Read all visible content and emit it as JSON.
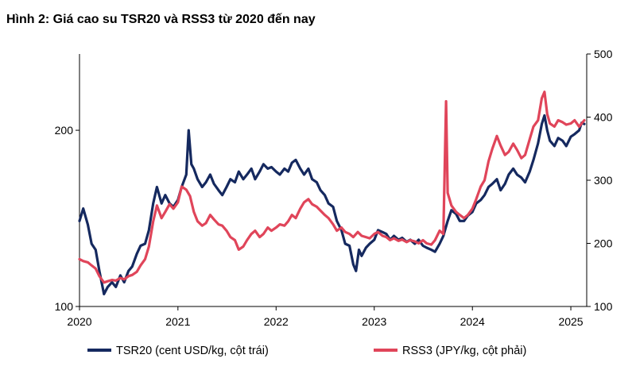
{
  "title": "Hình 2: Giá cao su TSR20 và RSS3 từ 2020 đến nay",
  "chart_data": {
    "type": "line",
    "title": "Hình 2: Giá cao su TSR20 và RSS3 từ 2020 đến nay",
    "x_range": [
      "2020-01-01",
      "2025-03-01"
    ],
    "x_ticks": [
      "2020",
      "2021",
      "2022",
      "2023",
      "2024",
      "2025"
    ],
    "left_axis": {
      "scale": "log",
      "range": [
        100,
        270
      ],
      "ticks": [
        100,
        200
      ]
    },
    "right_axis": {
      "scale": "linear",
      "range": [
        100,
        500
      ],
      "ticks": [
        100,
        200,
        300,
        400,
        500
      ]
    },
    "grid": false,
    "legend_position": "bottom",
    "series": [
      {
        "name": "TSR20 (cent USD/kg, cột trái)",
        "axis": "left",
        "color": "#15295f",
        "points": [
          [
            "2020-01-01",
            140
          ],
          [
            "2020-01-15",
            147
          ],
          [
            "2020-02-01",
            138
          ],
          [
            "2020-02-15",
            128
          ],
          [
            "2020-03-01",
            125
          ],
          [
            "2020-03-15",
            115
          ],
          [
            "2020-04-01",
            105
          ],
          [
            "2020-04-15",
            108
          ],
          [
            "2020-05-01",
            110
          ],
          [
            "2020-05-15",
            108
          ],
          [
            "2020-06-01",
            113
          ],
          [
            "2020-06-15",
            110
          ],
          [
            "2020-07-01",
            115
          ],
          [
            "2020-07-15",
            117
          ],
          [
            "2020-08-01",
            123
          ],
          [
            "2020-08-15",
            127
          ],
          [
            "2020-09-01",
            128
          ],
          [
            "2020-09-15",
            135
          ],
          [
            "2020-10-01",
            150
          ],
          [
            "2020-10-15",
            160
          ],
          [
            "2020-11-01",
            150
          ],
          [
            "2020-11-15",
            155
          ],
          [
            "2020-12-01",
            150
          ],
          [
            "2020-12-15",
            148
          ],
          [
            "2021-01-01",
            152
          ],
          [
            "2021-01-15",
            160
          ],
          [
            "2021-02-01",
            168
          ],
          [
            "2021-02-10",
            200
          ],
          [
            "2021-02-20",
            175
          ],
          [
            "2021-03-01",
            172
          ],
          [
            "2021-03-15",
            165
          ],
          [
            "2021-04-01",
            160
          ],
          [
            "2021-04-15",
            163
          ],
          [
            "2021-05-01",
            168
          ],
          [
            "2021-05-15",
            162
          ],
          [
            "2021-06-01",
            158
          ],
          [
            "2021-06-15",
            155
          ],
          [
            "2021-07-01",
            160
          ],
          [
            "2021-07-15",
            165
          ],
          [
            "2021-08-01",
            163
          ],
          [
            "2021-08-15",
            170
          ],
          [
            "2021-09-01",
            165
          ],
          [
            "2021-09-15",
            168
          ],
          [
            "2021-10-01",
            172
          ],
          [
            "2021-10-15",
            165
          ],
          [
            "2021-11-01",
            170
          ],
          [
            "2021-11-15",
            175
          ],
          [
            "2021-12-01",
            172
          ],
          [
            "2021-12-15",
            173
          ],
          [
            "2022-01-01",
            170
          ],
          [
            "2022-01-15",
            168
          ],
          [
            "2022-02-01",
            172
          ],
          [
            "2022-02-15",
            170
          ],
          [
            "2022-03-01",
            176
          ],
          [
            "2022-03-15",
            178
          ],
          [
            "2022-04-01",
            172
          ],
          [
            "2022-04-15",
            168
          ],
          [
            "2022-05-01",
            172
          ],
          [
            "2022-05-15",
            165
          ],
          [
            "2022-06-01",
            163
          ],
          [
            "2022-06-15",
            158
          ],
          [
            "2022-07-01",
            155
          ],
          [
            "2022-07-15",
            150
          ],
          [
            "2022-08-01",
            148
          ],
          [
            "2022-08-15",
            140
          ],
          [
            "2022-09-01",
            135
          ],
          [
            "2022-09-15",
            128
          ],
          [
            "2022-10-01",
            127
          ],
          [
            "2022-10-15",
            118
          ],
          [
            "2022-10-25",
            115
          ],
          [
            "2022-11-05",
            125
          ],
          [
            "2022-11-15",
            122
          ],
          [
            "2022-12-01",
            126
          ],
          [
            "2022-12-15",
            128
          ],
          [
            "2023-01-01",
            130
          ],
          [
            "2023-01-15",
            135
          ],
          [
            "2023-02-01",
            134
          ],
          [
            "2023-02-15",
            133
          ],
          [
            "2023-03-01",
            130
          ],
          [
            "2023-03-15",
            132
          ],
          [
            "2023-04-01",
            130
          ],
          [
            "2023-04-15",
            131
          ],
          [
            "2023-05-01",
            129
          ],
          [
            "2023-05-15",
            130
          ],
          [
            "2023-06-01",
            128
          ],
          [
            "2023-06-15",
            130
          ],
          [
            "2023-07-01",
            127
          ],
          [
            "2023-07-15",
            126
          ],
          [
            "2023-08-01",
            125
          ],
          [
            "2023-08-15",
            124
          ],
          [
            "2023-09-01",
            128
          ],
          [
            "2023-09-15",
            132
          ],
          [
            "2023-10-01",
            140
          ],
          [
            "2023-10-15",
            146
          ],
          [
            "2023-11-01",
            144
          ],
          [
            "2023-11-15",
            140
          ],
          [
            "2023-12-01",
            140
          ],
          [
            "2023-12-15",
            143
          ],
          [
            "2024-01-01",
            145
          ],
          [
            "2024-01-15",
            150
          ],
          [
            "2024-02-01",
            152
          ],
          [
            "2024-02-15",
            155
          ],
          [
            "2024-03-01",
            160
          ],
          [
            "2024-03-15",
            162
          ],
          [
            "2024-04-01",
            165
          ],
          [
            "2024-04-15",
            158
          ],
          [
            "2024-05-01",
            162
          ],
          [
            "2024-05-15",
            168
          ],
          [
            "2024-06-01",
            172
          ],
          [
            "2024-06-15",
            168
          ],
          [
            "2024-07-01",
            166
          ],
          [
            "2024-07-15",
            163
          ],
          [
            "2024-08-01",
            170
          ],
          [
            "2024-08-15",
            178
          ],
          [
            "2024-09-01",
            190
          ],
          [
            "2024-09-15",
            205
          ],
          [
            "2024-09-25",
            212
          ],
          [
            "2024-10-05",
            200
          ],
          [
            "2024-10-15",
            192
          ],
          [
            "2024-11-01",
            188
          ],
          [
            "2024-11-15",
            194
          ],
          [
            "2024-12-01",
            192
          ],
          [
            "2024-12-15",
            188
          ],
          [
            "2025-01-01",
            195
          ],
          [
            "2025-01-15",
            197
          ],
          [
            "2025-02-01",
            200
          ],
          [
            "2025-02-10",
            206
          ],
          [
            "2025-02-20",
            205
          ]
        ]
      },
      {
        "name": "RSS3 (JPY/kg, cột phải)",
        "axis": "right",
        "color": "#e0455a",
        "points": [
          [
            "2020-01-01",
            175
          ],
          [
            "2020-01-15",
            172
          ],
          [
            "2020-02-01",
            170
          ],
          [
            "2020-02-15",
            165
          ],
          [
            "2020-03-01",
            160
          ],
          [
            "2020-03-15",
            148
          ],
          [
            "2020-04-01",
            138
          ],
          [
            "2020-04-15",
            140
          ],
          [
            "2020-05-01",
            142
          ],
          [
            "2020-05-15",
            141
          ],
          [
            "2020-06-01",
            145
          ],
          [
            "2020-06-15",
            143
          ],
          [
            "2020-07-01",
            148
          ],
          [
            "2020-07-15",
            150
          ],
          [
            "2020-08-01",
            155
          ],
          [
            "2020-08-15",
            165
          ],
          [
            "2020-09-01",
            175
          ],
          [
            "2020-09-15",
            195
          ],
          [
            "2020-10-01",
            235
          ],
          [
            "2020-10-15",
            260
          ],
          [
            "2020-11-01",
            240
          ],
          [
            "2020-11-15",
            250
          ],
          [
            "2020-12-01",
            262
          ],
          [
            "2020-12-15",
            255
          ],
          [
            "2021-01-01",
            265
          ],
          [
            "2021-01-15",
            290
          ],
          [
            "2021-02-01",
            285
          ],
          [
            "2021-02-15",
            275
          ],
          [
            "2021-03-01",
            250
          ],
          [
            "2021-03-15",
            235
          ],
          [
            "2021-04-01",
            228
          ],
          [
            "2021-04-15",
            232
          ],
          [
            "2021-05-01",
            245
          ],
          [
            "2021-05-15",
            238
          ],
          [
            "2021-06-01",
            230
          ],
          [
            "2021-06-15",
            228
          ],
          [
            "2021-07-01",
            220
          ],
          [
            "2021-07-15",
            210
          ],
          [
            "2021-08-01",
            205
          ],
          [
            "2021-08-15",
            190
          ],
          [
            "2021-09-01",
            195
          ],
          [
            "2021-09-15",
            205
          ],
          [
            "2021-10-01",
            215
          ],
          [
            "2021-10-15",
            220
          ],
          [
            "2021-11-01",
            210
          ],
          [
            "2021-11-15",
            215
          ],
          [
            "2021-12-01",
            225
          ],
          [
            "2021-12-15",
            220
          ],
          [
            "2022-01-01",
            225
          ],
          [
            "2022-01-15",
            230
          ],
          [
            "2022-02-01",
            228
          ],
          [
            "2022-02-15",
            235
          ],
          [
            "2022-03-01",
            245
          ],
          [
            "2022-03-15",
            240
          ],
          [
            "2022-04-01",
            255
          ],
          [
            "2022-04-15",
            265
          ],
          [
            "2022-05-01",
            270
          ],
          [
            "2022-05-15",
            262
          ],
          [
            "2022-06-01",
            258
          ],
          [
            "2022-06-15",
            252
          ],
          [
            "2022-07-01",
            245
          ],
          [
            "2022-07-15",
            240
          ],
          [
            "2022-08-01",
            230
          ],
          [
            "2022-08-15",
            220
          ],
          [
            "2022-09-01",
            225
          ],
          [
            "2022-09-15",
            218
          ],
          [
            "2022-10-01",
            215
          ],
          [
            "2022-10-15",
            210
          ],
          [
            "2022-11-01",
            218
          ],
          [
            "2022-11-15",
            212
          ],
          [
            "2022-12-01",
            210
          ],
          [
            "2022-12-15",
            208
          ],
          [
            "2023-01-01",
            215
          ],
          [
            "2023-01-15",
            218
          ],
          [
            "2023-02-01",
            212
          ],
          [
            "2023-02-15",
            210
          ],
          [
            "2023-03-01",
            205
          ],
          [
            "2023-03-15",
            208
          ],
          [
            "2023-04-01",
            204
          ],
          [
            "2023-04-15",
            206
          ],
          [
            "2023-05-01",
            202
          ],
          [
            "2023-05-15",
            205
          ],
          [
            "2023-06-01",
            203
          ],
          [
            "2023-06-15",
            200
          ],
          [
            "2023-07-01",
            205
          ],
          [
            "2023-07-15",
            200
          ],
          [
            "2023-08-01",
            198
          ],
          [
            "2023-08-15",
            205
          ],
          [
            "2023-09-01",
            220
          ],
          [
            "2023-09-15",
            215
          ],
          [
            "2023-09-25",
            425
          ],
          [
            "2023-10-01",
            280
          ],
          [
            "2023-10-15",
            260
          ],
          [
            "2023-11-01",
            250
          ],
          [
            "2023-11-15",
            245
          ],
          [
            "2023-12-01",
            240
          ],
          [
            "2023-12-15",
            245
          ],
          [
            "2024-01-01",
            255
          ],
          [
            "2024-01-15",
            270
          ],
          [
            "2024-02-01",
            290
          ],
          [
            "2024-02-15",
            300
          ],
          [
            "2024-03-01",
            330
          ],
          [
            "2024-03-15",
            350
          ],
          [
            "2024-04-01",
            370
          ],
          [
            "2024-04-15",
            355
          ],
          [
            "2024-05-01",
            340
          ],
          [
            "2024-05-15",
            345
          ],
          [
            "2024-06-01",
            358
          ],
          [
            "2024-06-15",
            348
          ],
          [
            "2024-07-01",
            335
          ],
          [
            "2024-07-15",
            340
          ],
          [
            "2024-08-01",
            365
          ],
          [
            "2024-08-15",
            385
          ],
          [
            "2024-09-01",
            395
          ],
          [
            "2024-09-15",
            430
          ],
          [
            "2024-09-25",
            440
          ],
          [
            "2024-10-05",
            405
          ],
          [
            "2024-10-15",
            390
          ],
          [
            "2024-11-01",
            385
          ],
          [
            "2024-11-15",
            395
          ],
          [
            "2024-12-01",
            392
          ],
          [
            "2024-12-15",
            388
          ],
          [
            "2025-01-01",
            390
          ],
          [
            "2025-01-15",
            395
          ],
          [
            "2025-02-01",
            385
          ],
          [
            "2025-02-10",
            390
          ],
          [
            "2025-02-20",
            395
          ]
        ]
      }
    ]
  }
}
